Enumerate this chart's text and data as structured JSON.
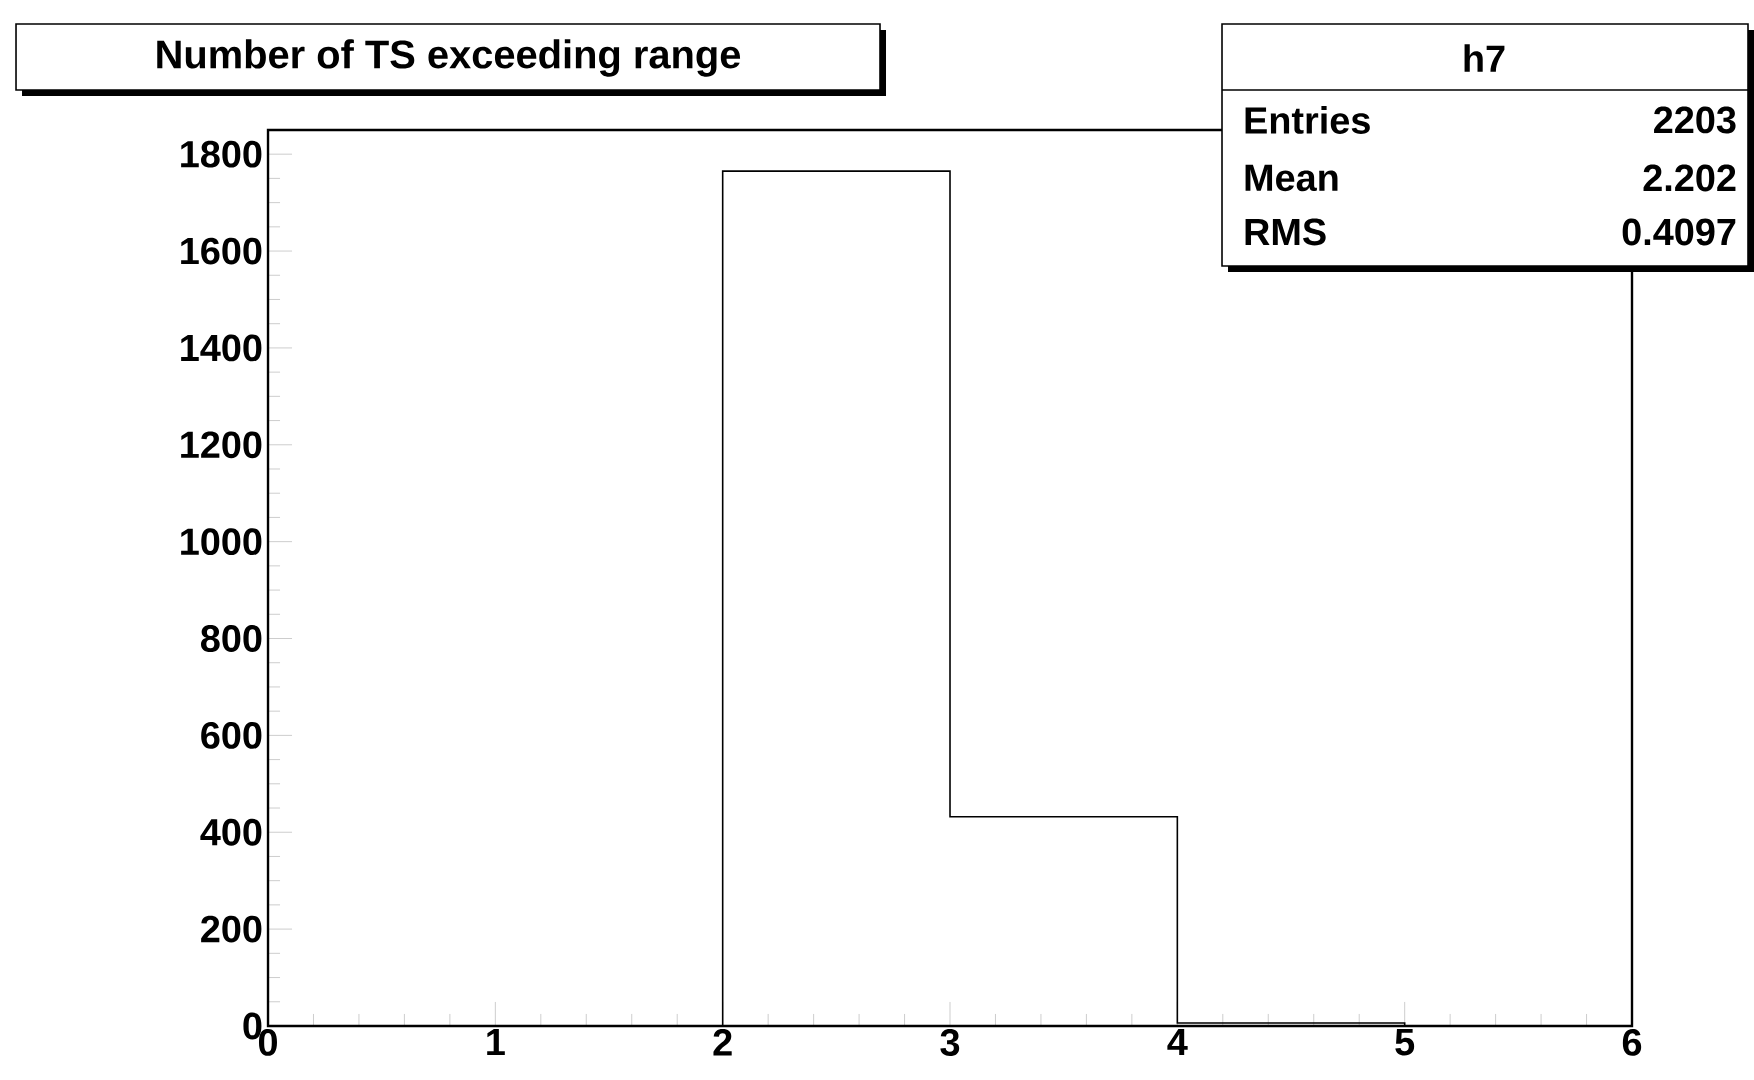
{
  "chart_data": {
    "type": "histogram",
    "title": "Number of TS exceeding range",
    "bins": [
      0,
      1,
      2,
      3,
      4,
      5,
      6
    ],
    "values": [
      0,
      0,
      1765,
      432,
      6,
      0
    ],
    "color": "#000000",
    "xlim": [
      0,
      6
    ],
    "ylim": [
      0,
      1850
    ],
    "xticks": [
      0,
      1,
      2,
      3,
      4,
      5,
      6
    ],
    "yticks": [
      0,
      200,
      400,
      600,
      800,
      1000,
      1200,
      1400,
      1600,
      1800
    ],
    "annotations": [
      "h7",
      "Entries",
      "2203",
      "Mean",
      "2.202",
      "RMS",
      "0.4097"
    ]
  }
}
